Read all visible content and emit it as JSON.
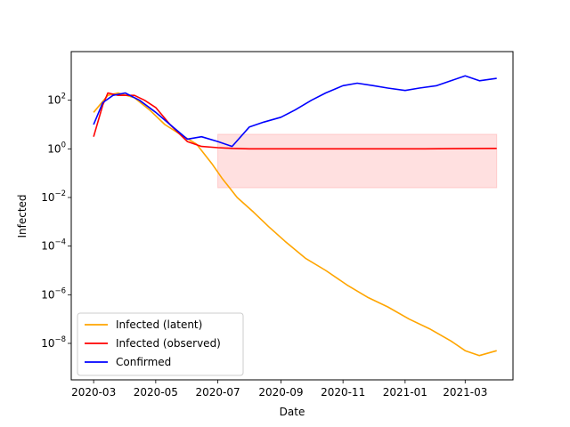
{
  "chart_data": {
    "type": "line",
    "title": "",
    "xlabel": "Date",
    "ylabel": "Infected",
    "yscale": "log",
    "xlim": [
      "2020-02-08",
      "2021-04-17"
    ],
    "ylim_log10": [
      -9.5,
      4
    ],
    "xticks": [
      {
        "date": "2020-03-01",
        "label": "2020-03"
      },
      {
        "date": "2020-05-01",
        "label": "2020-05"
      },
      {
        "date": "2020-07-01",
        "label": "2020-07"
      },
      {
        "date": "2020-09-01",
        "label": "2020-09"
      },
      {
        "date": "2020-11-01",
        "label": "2020-11"
      },
      {
        "date": "2021-01-01",
        "label": "2021-01"
      },
      {
        "date": "2021-03-01",
        "label": "2021-03"
      }
    ],
    "yticks": [
      {
        "exp": 2,
        "label": "10",
        "sup": "2"
      },
      {
        "exp": 0,
        "label": "10",
        "sup": "0"
      },
      {
        "exp": -2,
        "label": "10",
        "sup": "−2"
      },
      {
        "exp": -4,
        "label": "10",
        "sup": "−4"
      },
      {
        "exp": -6,
        "label": "10",
        "sup": "−6"
      },
      {
        "exp": -8,
        "label": "10",
        "sup": "−8"
      }
    ],
    "legend": "lower-left",
    "series": [
      {
        "name": "Infected (latent)",
        "color": "#ffa500",
        "points": [
          [
            "2020-03-01",
            1.5
          ],
          [
            "2020-03-15",
            2.2
          ],
          [
            "2020-03-25",
            2.3
          ],
          [
            "2020-04-10",
            2.1
          ],
          [
            "2020-04-25",
            1.6
          ],
          [
            "2020-05-10",
            1.0
          ],
          [
            "2020-05-25",
            0.6
          ],
          [
            "2020-06-10",
            0.2
          ],
          [
            "2020-06-25",
            -0.6
          ],
          [
            "2020-07-05",
            -1.2
          ],
          [
            "2020-07-20",
            -2.0
          ],
          [
            "2020-08-05",
            -2.6
          ],
          [
            "2020-08-20",
            -3.2
          ],
          [
            "2020-09-05",
            -3.8
          ],
          [
            "2020-09-25",
            -4.5
          ],
          [
            "2020-10-15",
            -5.0
          ],
          [
            "2020-11-05",
            -5.6
          ],
          [
            "2020-11-25",
            -6.1
          ],
          [
            "2020-12-15",
            -6.5
          ],
          [
            "2021-01-05",
            -7.0
          ],
          [
            "2021-01-25",
            -7.4
          ],
          [
            "2021-02-15",
            -7.9
          ],
          [
            "2021-03-01",
            -8.3
          ],
          [
            "2021-03-15",
            -8.5
          ],
          [
            "2021-04-01",
            -8.3
          ]
        ]
      },
      {
        "name": "Infected (observed)",
        "color": "#ff0000",
        "points": [
          [
            "2020-03-01",
            0.5
          ],
          [
            "2020-03-10",
            1.8
          ],
          [
            "2020-03-15",
            2.3
          ],
          [
            "2020-03-25",
            2.2
          ],
          [
            "2020-04-10",
            2.2
          ],
          [
            "2020-04-20",
            2.0
          ],
          [
            "2020-05-01",
            1.7
          ],
          [
            "2020-05-15",
            1.0
          ],
          [
            "2020-06-01",
            0.3
          ],
          [
            "2020-06-15",
            0.1
          ],
          [
            "2020-07-01",
            0.05
          ],
          [
            "2020-07-15",
            0.02
          ],
          [
            "2020-08-01",
            0.0
          ],
          [
            "2021-01-20",
            0.0
          ],
          [
            "2021-04-01",
            0.02
          ]
        ],
        "band": {
          "lower_log10": -1.6,
          "upper_log10": 0.6,
          "start": "2020-07-01",
          "end": "2021-04-01"
        }
      },
      {
        "name": "Confirmed",
        "color": "#0000ff",
        "points": [
          [
            "2020-03-01",
            1.0
          ],
          [
            "2020-03-10",
            1.9
          ],
          [
            "2020-03-20",
            2.2
          ],
          [
            "2020-04-01",
            2.3
          ],
          [
            "2020-04-15",
            2.0
          ],
          [
            "2020-05-01",
            1.5
          ],
          [
            "2020-05-15",
            1.0
          ],
          [
            "2020-06-01",
            0.4
          ],
          [
            "2020-06-15",
            0.5
          ],
          [
            "2020-07-01",
            0.3
          ],
          [
            "2020-07-15",
            0.1
          ],
          [
            "2020-08-01",
            0.9
          ],
          [
            "2020-08-15",
            1.1
          ],
          [
            "2020-09-01",
            1.3
          ],
          [
            "2020-09-15",
            1.6
          ],
          [
            "2020-10-01",
            2.0
          ],
          [
            "2020-10-15",
            2.3
          ],
          [
            "2020-11-01",
            2.6
          ],
          [
            "2020-11-15",
            2.7
          ],
          [
            "2020-12-01",
            2.6
          ],
          [
            "2020-12-15",
            2.5
          ],
          [
            "2021-01-01",
            2.4
          ],
          [
            "2021-01-15",
            2.5
          ],
          [
            "2021-02-01",
            2.6
          ],
          [
            "2021-02-15",
            2.8
          ],
          [
            "2021-03-01",
            3.0
          ],
          [
            "2021-03-15",
            2.8
          ],
          [
            "2021-04-01",
            2.9
          ]
        ]
      }
    ]
  }
}
